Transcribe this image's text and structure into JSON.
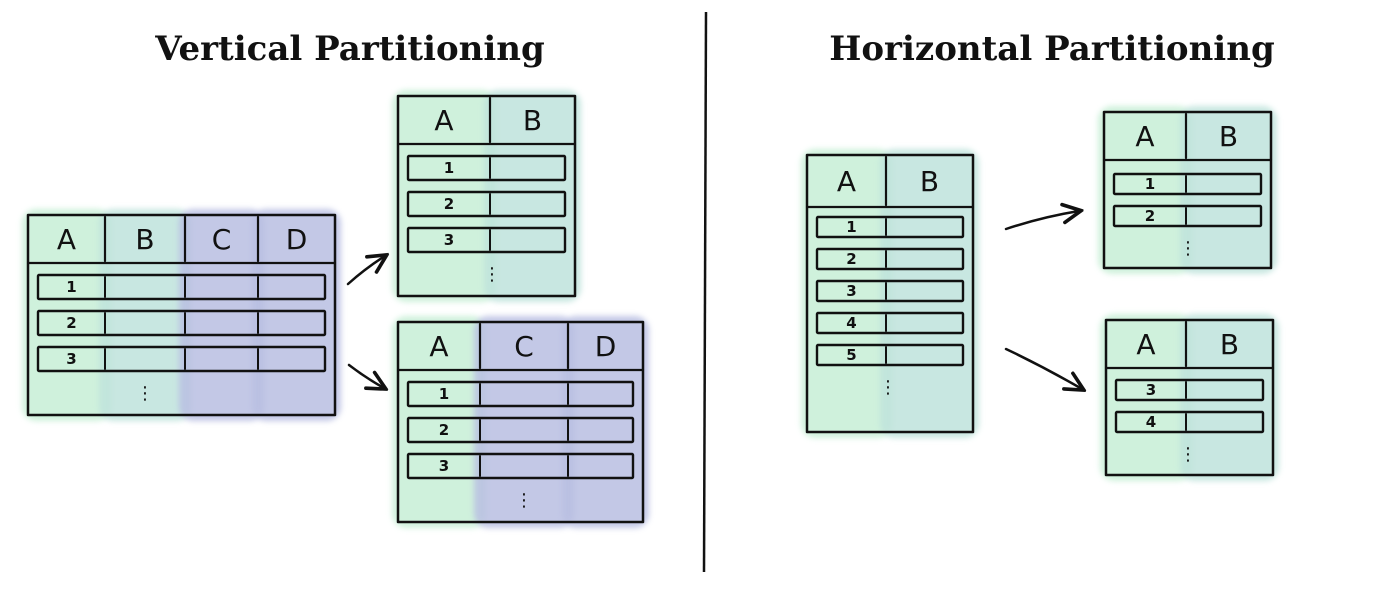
{
  "colors": {
    "green": "#c7efd6",
    "teal": "#bfe3dc",
    "purple": "#b9bfe2",
    "ink": "#111111"
  },
  "titles": {
    "vertical": "Vertical Partitioning",
    "horizontal": "Horizontal Partitioning"
  },
  "vertical": {
    "source": {
      "columns": [
        "A",
        "B",
        "C",
        "D"
      ],
      "rows": [
        "1",
        "2",
        "3"
      ],
      "ellipsis": "⋮"
    },
    "top": {
      "columns": [
        "A",
        "B"
      ],
      "rows": [
        "1",
        "2",
        "3"
      ],
      "ellipsis": "⋮"
    },
    "bottom": {
      "columns": [
        "A",
        "C",
        "D"
      ],
      "rows": [
        "1",
        "2",
        "3"
      ],
      "ellipsis": "⋮"
    }
  },
  "horizontal": {
    "source": {
      "columns": [
        "A",
        "B"
      ],
      "rows": [
        "1",
        "2",
        "3",
        "4",
        "5"
      ],
      "ellipsis": "⋮"
    },
    "top": {
      "columns": [
        "A",
        "B"
      ],
      "rows": [
        "1",
        "2"
      ],
      "ellipsis": "⋮"
    },
    "bottom": {
      "columns": [
        "A",
        "B"
      ],
      "rows": [
        "3",
        "4"
      ],
      "ellipsis": "⋮"
    }
  }
}
